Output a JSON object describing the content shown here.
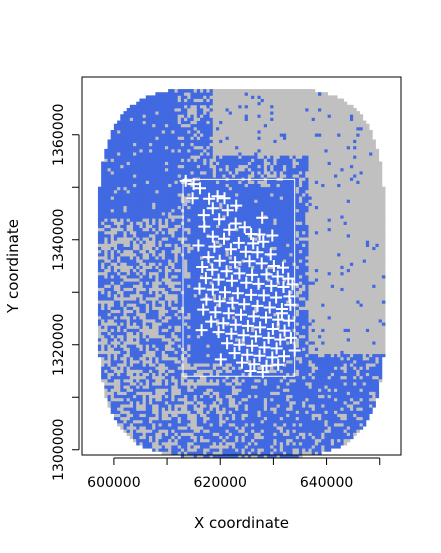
{
  "chart_data": {
    "type": "heatmap",
    "title": "",
    "xlabel": "X coordinate",
    "ylabel": "Y coordinate",
    "xlim": [
      594000,
      654000
    ],
    "ylim": [
      1299000,
      1371000
    ],
    "x_ticks": [
      600000,
      610000,
      620000,
      630000,
      640000,
      650000
    ],
    "x_tick_labels": [
      "600000",
      "",
      "620000",
      "",
      "640000",
      ""
    ],
    "y_ticks": [
      1300000,
      1310000,
      1320000,
      1330000,
      1340000,
      1350000,
      1360000
    ],
    "y_tick_labels": [
      "1300000",
      "",
      "1320000",
      "",
      "1340000",
      "",
      "1360000"
    ],
    "raster_colors": {
      "category_a": "#c0c0c0",
      "category_b": "#4169e1"
    },
    "raster_extent": {
      "x": [
        597000,
        651000
      ],
      "y": [
        1298500,
        1369000
      ]
    },
    "study_window": {
      "x": [
        613000,
        634000
      ],
      "y": [
        1314000,
        1351500
      ]
    },
    "points_color": "#ffffff",
    "points": [
      [
        613.5,
        1351.2
      ],
      [
        615.0,
        1350.6
      ],
      [
        616.2,
        1349.8
      ],
      [
        614.8,
        1347.9
      ],
      [
        617.9,
        1347.8
      ],
      [
        619.5,
        1348.3
      ],
      [
        620.8,
        1347.9
      ],
      [
        618.6,
        1346.0
      ],
      [
        621.4,
        1345.6
      ],
      [
        616.9,
        1344.7
      ],
      [
        619.8,
        1343.9
      ],
      [
        622.9,
        1343.1
      ],
      [
        624.6,
        1342.4
      ],
      [
        621.7,
        1341.9
      ],
      [
        625.8,
        1341.1
      ],
      [
        627.4,
        1341.0
      ],
      [
        618.6,
        1340.6
      ],
      [
        620.7,
        1340.2
      ],
      [
        623.5,
        1339.4
      ],
      [
        626.2,
        1339.3
      ],
      [
        628.1,
        1339.6
      ],
      [
        622.0,
        1338.2
      ],
      [
        624.8,
        1337.7
      ],
      [
        627.0,
        1337.6
      ],
      [
        629.5,
        1337.2
      ],
      [
        617.8,
        1336.7
      ],
      [
        619.9,
        1336.0
      ],
      [
        622.8,
        1335.7
      ],
      [
        625.5,
        1335.9
      ],
      [
        627.8,
        1335.5
      ],
      [
        630.1,
        1335.0
      ],
      [
        631.8,
        1334.7
      ],
      [
        616.6,
        1334.8
      ],
      [
        618.5,
        1334.3
      ],
      [
        621.2,
        1334.0
      ],
      [
        623.6,
        1333.6
      ],
      [
        626.0,
        1333.3
      ],
      [
        628.7,
        1333.4
      ],
      [
        630.8,
        1333.0
      ],
      [
        632.8,
        1332.6
      ],
      [
        617.3,
        1332.7
      ],
      [
        619.7,
        1332.4
      ],
      [
        622.2,
        1332.2
      ],
      [
        624.9,
        1331.8
      ],
      [
        627.2,
        1331.6
      ],
      [
        629.6,
        1331.2
      ],
      [
        631.9,
        1331.0
      ],
      [
        616.1,
        1330.7
      ],
      [
        618.6,
        1330.5
      ],
      [
        620.9,
        1330.0
      ],
      [
        623.3,
        1329.8
      ],
      [
        625.8,
        1329.5
      ],
      [
        628.2,
        1329.4
      ],
      [
        630.5,
        1329.0
      ],
      [
        633.0,
        1329.2
      ],
      [
        617.4,
        1328.6
      ],
      [
        619.9,
        1328.3
      ],
      [
        622.3,
        1328.0
      ],
      [
        624.5,
        1327.7
      ],
      [
        627.0,
        1327.4
      ],
      [
        629.3,
        1327.1
      ],
      [
        631.6,
        1326.8
      ],
      [
        633.2,
        1327.6
      ],
      [
        616.8,
        1326.7
      ],
      [
        619.1,
        1326.2
      ],
      [
        621.6,
        1326.0
      ],
      [
        623.9,
        1325.7
      ],
      [
        626.3,
        1325.4
      ],
      [
        628.6,
        1325.2
      ],
      [
        630.9,
        1324.8
      ],
      [
        632.9,
        1324.6
      ],
      [
        618.3,
        1324.4
      ],
      [
        620.6,
        1324.1
      ],
      [
        622.9,
        1323.8
      ],
      [
        625.2,
        1323.6
      ],
      [
        627.5,
        1323.3
      ],
      [
        629.9,
        1323.0
      ],
      [
        632.1,
        1322.7
      ],
      [
        619.7,
        1322.4
      ],
      [
        622.1,
        1322.1
      ],
      [
        624.4,
        1321.8
      ],
      [
        626.7,
        1321.6
      ],
      [
        629.1,
        1321.3
      ],
      [
        631.3,
        1321.0
      ],
      [
        633.3,
        1321.3
      ],
      [
        621.3,
        1320.3
      ],
      [
        623.6,
        1320.0
      ],
      [
        626.0,
        1319.8
      ],
      [
        628.3,
        1319.5
      ],
      [
        630.6,
        1319.3
      ],
      [
        622.7,
        1318.4
      ],
      [
        625.1,
        1318.1
      ],
      [
        627.4,
        1317.9
      ],
      [
        629.8,
        1317.6
      ],
      [
        632.0,
        1317.8
      ],
      [
        624.1,
        1316.6
      ],
      [
        626.4,
        1316.3
      ],
      [
        628.7,
        1316.0
      ],
      [
        630.9,
        1316.2
      ],
      [
        625.7,
        1315.0
      ],
      [
        628.0,
        1314.8
      ],
      [
        617.0,
        1342.5
      ],
      [
        615.9,
        1338.9
      ],
      [
        633.6,
        1331.5
      ],
      [
        627.9,
        1344.2
      ],
      [
        623.0,
        1346.5
      ],
      [
        631.6,
        1326.0
      ],
      [
        620.1,
        1317.2
      ],
      [
        634.0,
        1318.9
      ],
      [
        616.5,
        1322.8
      ],
      [
        629.8,
        1340.8
      ],
      [
        618.9,
        1338.7
      ]
    ]
  }
}
